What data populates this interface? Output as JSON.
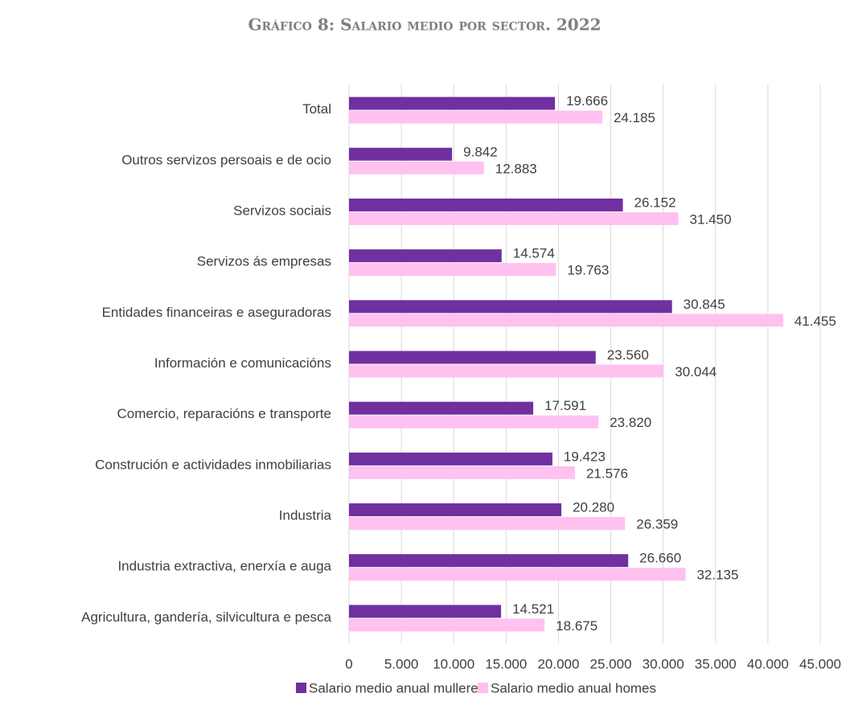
{
  "chart_data": {
    "type": "hbar",
    "title": "Gráfico 8: Salario medio por sector. 2022",
    "categories": [
      "Total",
      "Outros servizos persoais e de ocio",
      "Servizos sociais",
      "Servizos ás empresas",
      "Entidades financeiras e aseguradoras",
      "Información e comunicacións",
      "Comercio, reparacións e transporte",
      "Construción e actividades inmobiliarias",
      "Industria",
      "Industria extractiva, enerxía e auga",
      "Agricultura, gandería, silvicultura e pesca"
    ],
    "series": [
      {
        "name": "Salario medio anual mulleres",
        "color": "#7030a0",
        "values": [
          19666,
          9842,
          26152,
          14574,
          30845,
          23560,
          17591,
          19423,
          20280,
          26660,
          14521
        ],
        "value_labels": [
          "19.666",
          "9.842",
          "26.152",
          "14.574",
          "30.845",
          "23.560",
          "17.591",
          "19.423",
          "20.280",
          "26.660",
          "14.521"
        ]
      },
      {
        "name": "Salario medio anual homes",
        "color": "#ffc1f0",
        "values": [
          24185,
          12883,
          31450,
          19763,
          41455,
          30044,
          23820,
          21576,
          26359,
          32135,
          18675
        ],
        "value_labels": [
          "24.185",
          "12.883",
          "31.450",
          "19.763",
          "41.455",
          "30.044",
          "23.820",
          "21.576",
          "26.359",
          "32.135",
          "18.675"
        ]
      }
    ],
    "xlim": [
      0,
      45000
    ],
    "xticks": [
      0,
      {
        "value": 5000,
        "label": "5.000"
      },
      {
        "value": 10000,
        "label": "10.000"
      },
      {
        "value": 15000,
        "label": "15.000"
      },
      {
        "value": 20000,
        "label": "20.000"
      },
      {
        "value": 25000,
        "label": "25.000"
      },
      {
        "value": 30000,
        "label": "30.000"
      },
      {
        "value": 35000,
        "label": "35.000"
      },
      {
        "value": 40000,
        "label": "40.000"
      },
      {
        "value": 45000,
        "label": "45.000"
      }
    ],
    "grid": true,
    "legend": "bottom"
  }
}
